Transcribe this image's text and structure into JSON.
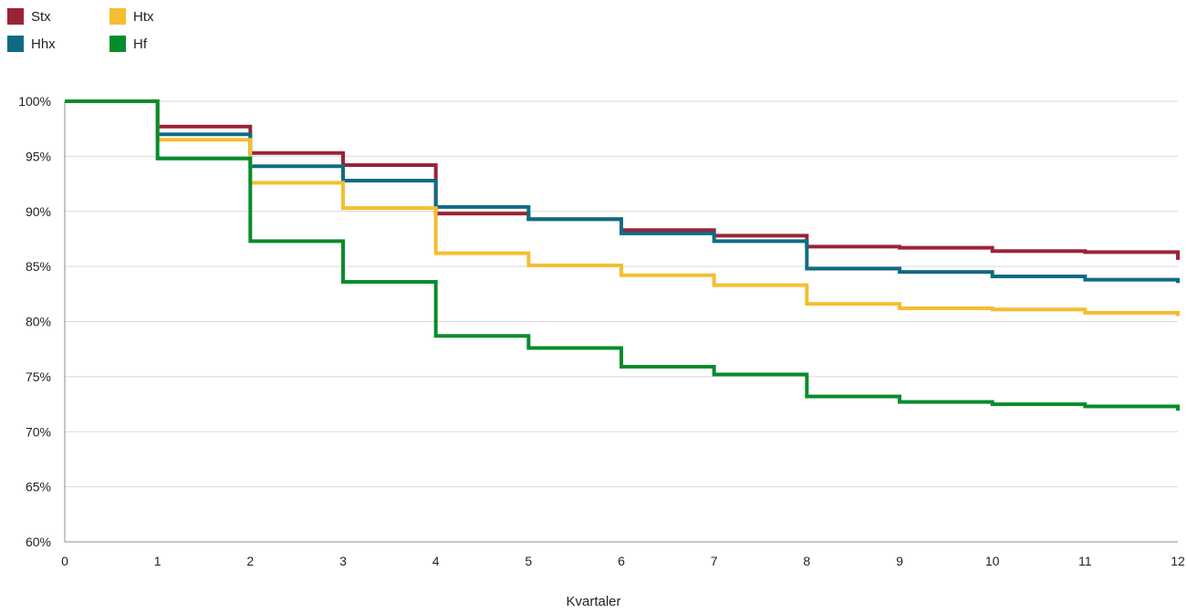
{
  "chart_data": {
    "type": "line",
    "step": true,
    "xlabel": "Kvartaler",
    "ylabel": "",
    "xlim": [
      0,
      12
    ],
    "ylim": [
      60,
      100
    ],
    "x_ticks": [
      "0",
      "1",
      "2",
      "3",
      "4",
      "5",
      "6",
      "7",
      "8",
      "9",
      "10",
      "11",
      "12"
    ],
    "y_ticks": [
      "60%",
      "65%",
      "70%",
      "75%",
      "80%",
      "85%",
      "90%",
      "95%",
      "100%"
    ],
    "grid": "horizontal",
    "legend_position": "top-left",
    "x": [
      0,
      1,
      2,
      3,
      4,
      5,
      6,
      7,
      8,
      9,
      10,
      11,
      12
    ],
    "series": [
      {
        "name": "Stx",
        "color": "#9b2335",
        "values": [
          100,
          97.7,
          95.3,
          94.2,
          89.8,
          89.3,
          88.3,
          87.8,
          86.8,
          86.7,
          86.4,
          86.3,
          85.6
        ]
      },
      {
        "name": "Hhx",
        "color": "#0f6b85",
        "values": [
          100,
          97.0,
          94.1,
          92.8,
          90.4,
          89.3,
          88.0,
          87.3,
          84.8,
          84.5,
          84.1,
          83.8,
          83.5
        ]
      },
      {
        "name": "Htx",
        "color": "#f5bd30",
        "values": [
          100,
          96.5,
          92.6,
          90.3,
          86.2,
          85.1,
          84.2,
          83.3,
          81.6,
          81.2,
          81.1,
          80.8,
          80.5
        ]
      },
      {
        "name": "Hf",
        "color": "#078c2c",
        "values": [
          100,
          94.8,
          87.3,
          83.6,
          78.7,
          77.6,
          75.9,
          75.2,
          73.2,
          72.7,
          72.5,
          72.3,
          71.9
        ]
      }
    ]
  }
}
